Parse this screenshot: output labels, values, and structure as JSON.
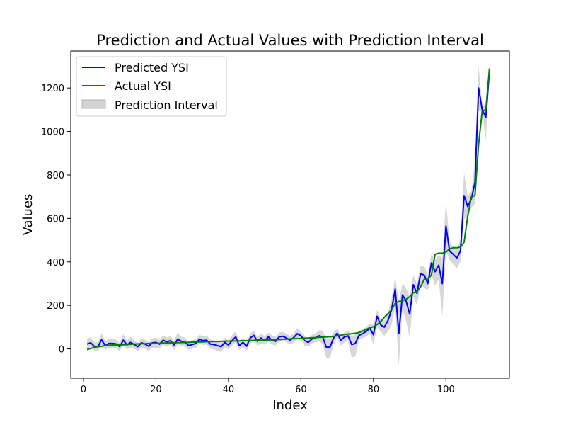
{
  "chart_data": {
    "type": "line",
    "title": "Prediction and Actual Values with Prediction Interval",
    "xlabel": "Index",
    "ylabel": "Values",
    "xlim": [
      -3.5,
      117.5
    ],
    "ylim": [
      -135,
      1370
    ],
    "xticks": [
      0,
      20,
      40,
      60,
      80,
      100
    ],
    "yticks": [
      0,
      200,
      400,
      600,
      800,
      1000,
      1200
    ],
    "grid": false,
    "legend_position": "top-left",
    "x": [
      1,
      2,
      3,
      4,
      5,
      6,
      7,
      8,
      9,
      10,
      11,
      12,
      13,
      14,
      15,
      16,
      17,
      18,
      19,
      20,
      21,
      22,
      23,
      24,
      25,
      26,
      27,
      28,
      29,
      30,
      31,
      32,
      33,
      34,
      35,
      36,
      37,
      38,
      39,
      40,
      41,
      42,
      43,
      44,
      45,
      46,
      47,
      48,
      49,
      50,
      51,
      52,
      53,
      54,
      55,
      56,
      57,
      58,
      59,
      60,
      61,
      62,
      63,
      64,
      65,
      66,
      67,
      68,
      69,
      70,
      71,
      72,
      73,
      74,
      75,
      76,
      77,
      78,
      79,
      80,
      81,
      82,
      83,
      84,
      85,
      86,
      87,
      88,
      89,
      90,
      91,
      92,
      93,
      94,
      95,
      96,
      97,
      98,
      99,
      100,
      101,
      102,
      103,
      104,
      105,
      106,
      107,
      108,
      109,
      110,
      111,
      112
    ],
    "series": [
      {
        "name": "Predicted YSI",
        "color": "#0000ff",
        "values": [
          22,
          28,
          12,
          10,
          42,
          15,
          25,
          25,
          23,
          10,
          40,
          18,
          30,
          20,
          10,
          28,
          22,
          12,
          28,
          30,
          22,
          40,
          32,
          38,
          18,
          45,
          35,
          32,
          15,
          20,
          25,
          45,
          38,
          40,
          22,
          20,
          15,
          10,
          30,
          18,
          38,
          55,
          15,
          30,
          12,
          50,
          62,
          35,
          50,
          38,
          55,
          40,
          35,
          55,
          58,
          50,
          40,
          52,
          70,
          60,
          38,
          30,
          45,
          50,
          60,
          55,
          8,
          8,
          50,
          72,
          40,
          55,
          60,
          20,
          25,
          62,
          70,
          80,
          95,
          65,
          150,
          110,
          100,
          130,
          180,
          275,
          70,
          248,
          220,
          160,
          295,
          255,
          345,
          340,
          300,
          395,
          355,
          385,
          300,
          565,
          450,
          435,
          418,
          450,
          705,
          655,
          690,
          765,
          1200,
          1100,
          1065,
          1280
        ]
      },
      {
        "name": "Actual YSI",
        "color": "#008000",
        "values": [
          -3,
          2,
          7,
          10,
          12,
          15,
          17,
          18,
          18,
          18,
          19,
          20,
          21,
          22,
          23,
          24,
          24,
          25,
          25,
          26,
          26,
          27,
          27,
          28,
          28,
          29,
          29,
          30,
          30,
          31,
          31,
          32,
          32,
          33,
          33,
          34,
          34,
          35,
          35,
          36,
          36,
          37,
          37,
          38,
          38,
          39,
          39,
          40,
          40,
          41,
          41,
          42,
          42,
          43,
          44,
          45,
          46,
          47,
          47,
          48,
          49,
          50,
          51,
          52,
          53,
          54,
          55,
          56,
          58,
          60,
          63,
          66,
          68,
          70,
          72,
          75,
          82,
          90,
          97,
          102,
          112,
          125,
          145,
          162,
          180,
          210,
          218,
          220,
          228,
          240,
          258,
          263,
          285,
          320,
          320,
          340,
          435,
          440,
          440,
          445,
          460,
          465,
          465,
          468,
          490,
          610,
          700,
          705,
          940,
          1095,
          1100,
          1290
        ]
      }
    ],
    "interval": {
      "name": "Prediction Interval",
      "color": "#d3d3d3",
      "lower": [
        0,
        8,
        -8,
        -10,
        15,
        -5,
        5,
        5,
        3,
        -10,
        15,
        -2,
        5,
        0,
        -10,
        5,
        0,
        -8,
        5,
        5,
        2,
        18,
        12,
        18,
        -5,
        20,
        15,
        10,
        -5,
        0,
        5,
        25,
        18,
        20,
        2,
        -3,
        -10,
        -15,
        8,
        -2,
        15,
        30,
        -5,
        8,
        -10,
        25,
        38,
        15,
        25,
        18,
        35,
        20,
        15,
        35,
        38,
        30,
        20,
        30,
        45,
        40,
        15,
        10,
        25,
        30,
        35,
        20,
        -40,
        -42,
        20,
        50,
        15,
        30,
        35,
        -40,
        -35,
        40,
        50,
        55,
        70,
        20,
        100,
        80,
        60,
        80,
        110,
        200,
        -75,
        180,
        130,
        50,
        240,
        200,
        300,
        280,
        270,
        340,
        290,
        320,
        150,
        450,
        410,
        390,
        370,
        400,
        600,
        600,
        650,
        665,
        1095,
        1090,
        960,
        1270
      ],
      "upper": [
        45,
        55,
        30,
        30,
        72,
        35,
        45,
        45,
        42,
        28,
        68,
        38,
        55,
        40,
        28,
        48,
        42,
        30,
        48,
        52,
        42,
        62,
        52,
        58,
        38,
        75,
        55,
        52,
        35,
        40,
        45,
        65,
        58,
        62,
        42,
        40,
        35,
        30,
        52,
        38,
        62,
        80,
        35,
        50,
        32,
        70,
        85,
        55,
        70,
        58,
        75,
        62,
        55,
        75,
        78,
        70,
        60,
        72,
        95,
        80,
        58,
        50,
        65,
        70,
        85,
        85,
        50,
        50,
        75,
        95,
        60,
        75,
        85,
        60,
        65,
        85,
        90,
        100,
        118,
        110,
        180,
        135,
        130,
        170,
        230,
        330,
        220,
        300,
        280,
        240,
        340,
        300,
        380,
        380,
        340,
        440,
        410,
        430,
        420,
        680,
        495,
        470,
        460,
        500,
        810,
        700,
        725,
        865,
        1300,
        1115,
        1125,
        1295
      ]
    }
  }
}
